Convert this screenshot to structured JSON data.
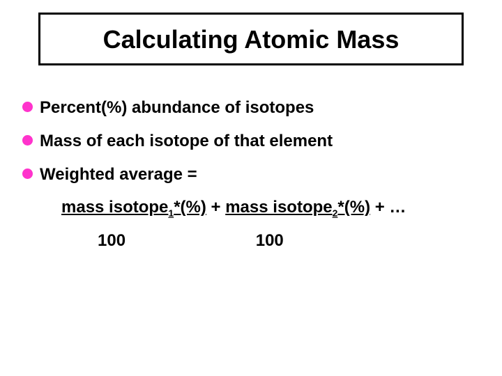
{
  "title": "Calculating Atomic Mass",
  "bullet_color": "#ff33cc",
  "border_color": "#000000",
  "background_color": "#ffffff",
  "text_color": "#000000",
  "title_fontsize": 36,
  "body_fontsize": 24,
  "bullets": [
    "Percent(%) abundance of isotopes",
    "Mass of each isotope of that element",
    "Weighted average ="
  ],
  "formula": {
    "part1_prefix": "mass isotope",
    "part1_sub": "1",
    "part1_suffix": "*(%)",
    "plus": " + ",
    "part2_prefix": "mass isotope",
    "part2_sub": "2",
    "part2_suffix": "*(%)",
    "trailing": " + …"
  },
  "divisor1": "100",
  "divisor2": "100"
}
